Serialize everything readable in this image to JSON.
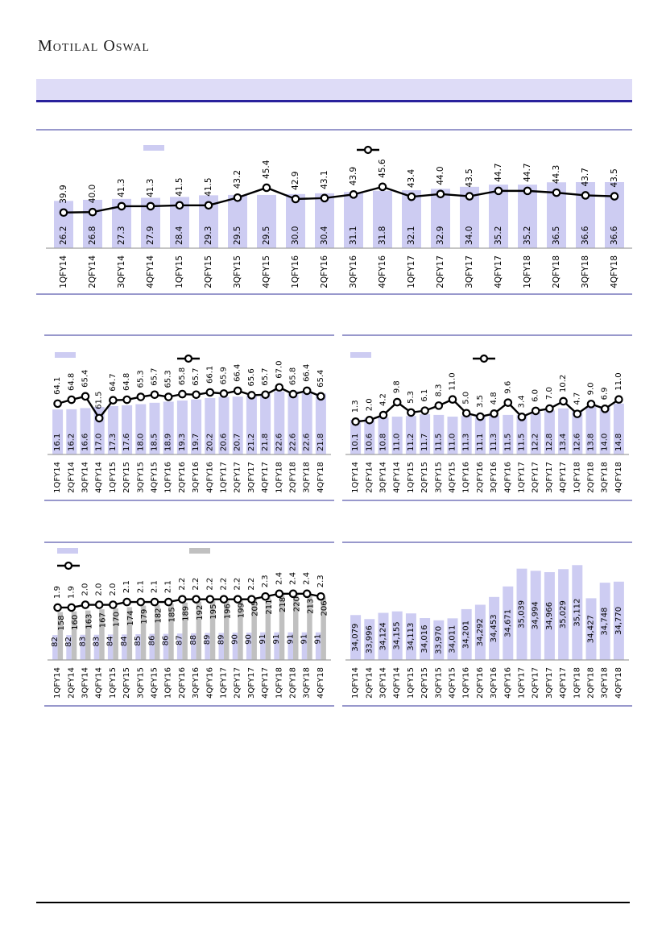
{
  "header": {
    "logo": "Motilal Oswal"
  },
  "colors": {
    "bar_fill": "#cdccf2",
    "bar_fill_secondary": "#c0c0c0",
    "banner_fill": "#dedcf7",
    "banner_border": "#29219c",
    "chart_border": "#9898cc",
    "axis_line": "#a0a0a0",
    "line_series": "#000000",
    "marker_fill": "#ffffff",
    "label_text": "#000000"
  },
  "chart_data": [
    {
      "id": "top-combo-chart",
      "type": "bar",
      "legend": [
        "bar-series-swatch",
        "line-series-marker"
      ],
      "grid": false,
      "categories": [
        "1QFY14",
        "2QFY14",
        "3QFY14",
        "4QFY14",
        "1QFY15",
        "2QFY15",
        "3QFY15",
        "4QFY15",
        "1QFY16",
        "2QFY16",
        "3QFY16",
        "4QFY16",
        "1QFY17",
        "2QFY17",
        "3QFY17",
        "4QFY17",
        "1QFY18",
        "2QFY18",
        "3QFY18",
        "4QFY18"
      ],
      "bar_axis": [
        0,
        50
      ],
      "line_axis": [
        32,
        52
      ],
      "series": [
        {
          "name": "bar-series",
          "type": "bar",
          "label_format": "1dp",
          "values": [
            26.2,
            26.8,
            27.3,
            27.9,
            28.4,
            29.3,
            29.5,
            29.5,
            30.0,
            30.4,
            31.1,
            31.8,
            32.1,
            32.9,
            34.0,
            35.2,
            35.2,
            36.5,
            36.6,
            36.6
          ]
        },
        {
          "name": "line-series",
          "type": "line",
          "label_format": "1dp",
          "values": [
            39.9,
            40.0,
            41.3,
            41.3,
            41.5,
            41.5,
            43.2,
            45.4,
            42.9,
            43.1,
            43.9,
            45.6,
            43.4,
            44.0,
            43.5,
            44.7,
            44.7,
            44.3,
            43.7,
            43.5
          ]
        }
      ]
    },
    {
      "id": "mid-left-combo-chart",
      "type": "bar",
      "legend": [
        "bar-series-swatch",
        "line-series-marker"
      ],
      "grid": false,
      "categories": [
        "1QFY14",
        "2QFY14",
        "3QFY14",
        "4QFY14",
        "1QFY15",
        "2QFY15",
        "3QFY15",
        "4QFY15",
        "1QFY16",
        "2QFY16",
        "3QFY16",
        "4QFY16",
        "1QFY17",
        "2QFY17",
        "3QFY17",
        "4QFY17",
        "1QFY18",
        "2QFY18",
        "3QFY18",
        "4QFY18"
      ],
      "bar_axis": [
        0,
        32
      ],
      "line_axis": [
        55,
        71
      ],
      "series": [
        {
          "name": "bar-series",
          "type": "bar",
          "label_format": "1dp",
          "values": [
            16.1,
            16.2,
            16.6,
            17.0,
            17.3,
            17.6,
            18.0,
            18.5,
            18.9,
            19.3,
            19.7,
            20.2,
            20.6,
            20.7,
            21.2,
            21.8,
            22.6,
            22.6,
            22.6,
            21.8
          ]
        },
        {
          "name": "line-series",
          "type": "line",
          "label_format": "1dp",
          "values": [
            64.1,
            64.8,
            65.4,
            61.5,
            64.7,
            64.8,
            65.3,
            65.7,
            65.3,
            65.8,
            65.7,
            66.1,
            65.9,
            66.4,
            65.6,
            65.7,
            67.0,
            65.8,
            66.4,
            65.4
          ]
        }
      ]
    },
    {
      "id": "mid-right-combo-chart",
      "type": "bar",
      "legend": [
        "bar-series-swatch",
        "line-series-marker"
      ],
      "grid": false,
      "categories": [
        "1QFY14",
        "2QFY14",
        "3QFY14",
        "4QFY14",
        "1QFY15",
        "2QFY15",
        "3QFY15",
        "4QFY15",
        "1QFY16",
        "2QFY16",
        "3QFY16",
        "4QFY16",
        "1QFY17",
        "2QFY17",
        "3QFY17",
        "4QFY17",
        "1QFY18",
        "2QFY18",
        "3QFY18",
        "4QFY18"
      ],
      "bar_axis": [
        0,
        26
      ],
      "line_axis": [
        -13,
        26
      ],
      "series": [
        {
          "name": "bar-series",
          "type": "bar",
          "label_format": "1dp",
          "values": [
            10.1,
            10.6,
            10.8,
            11.0,
            11.2,
            11.7,
            11.5,
            11.0,
            11.3,
            11.1,
            11.3,
            11.5,
            11.5,
            12.2,
            12.8,
            13.4,
            12.6,
            13.8,
            14.0,
            14.8
          ]
        },
        {
          "name": "line-series",
          "type": "line",
          "label_format": "1dp",
          "values": [
            1.3,
            2.0,
            4.2,
            9.8,
            5.3,
            6.1,
            8.3,
            11.0,
            5.0,
            3.5,
            4.8,
            9.6,
            3.4,
            6.0,
            7.0,
            10.2,
            4.7,
            9.0,
            6.9,
            11.0
          ]
        }
      ]
    },
    {
      "id": "bottom-left-combo-chart",
      "type": "bar",
      "legend": [
        "bar-series-swatch",
        "secondary-bar-series-swatch",
        "line-series-marker"
      ],
      "grid": false,
      "categories": [
        "1QFY14",
        "2QFY14",
        "3QFY14",
        "4QFY14",
        "1QFY15",
        "2QFY15",
        "3QFY15",
        "4QFY15",
        "1QFY16",
        "2QFY16",
        "3QFY16",
        "4QFY16",
        "1QFY17",
        "2QFY17",
        "3QFY17",
        "4QFY17",
        "1QFY18",
        "2QFY18",
        "3QFY18",
        "4QFY18"
      ],
      "bar_axis": [
        0,
        300
      ],
      "line_axis": [
        0,
        3.3
      ],
      "series": [
        {
          "name": "bar-series",
          "type": "bar",
          "label_format": "int",
          "values": [
            82,
            82,
            83,
            83,
            84,
            84,
            85,
            86,
            86,
            87,
            88,
            89,
            89,
            90,
            90,
            91,
            91,
            91,
            91,
            91
          ]
        },
        {
          "name": "secondary-bar-series",
          "type": "bar",
          "label_format": "int",
          "values": [
            158,
            160,
            163,
            167,
            170,
            174,
            179,
            182,
            185,
            189,
            192,
            195,
            196,
            199,
            205,
            211,
            218,
            220,
            213,
            206
          ]
        },
        {
          "name": "line-series",
          "type": "line",
          "label_format": "1dp",
          "values": [
            1.9,
            1.9,
            2.0,
            2.0,
            2.0,
            2.1,
            2.1,
            2.1,
            2.1,
            2.2,
            2.2,
            2.2,
            2.2,
            2.2,
            2.2,
            2.3,
            2.4,
            2.4,
            2.4,
            2.3
          ]
        }
      ]
    },
    {
      "id": "bottom-right-bar-chart",
      "type": "bar",
      "legend": [],
      "grid": false,
      "categories": [
        "1QFY14",
        "2QFY14",
        "3QFY14",
        "4QFY14",
        "1QFY15",
        "2QFY15",
        "3QFY15",
        "4QFY15",
        "1QFY16",
        "2QFY16",
        "3QFY16",
        "4QFY16",
        "1QFY17",
        "2QFY17",
        "3QFY17",
        "4QFY17",
        "1QFY18",
        "2QFY18",
        "3QFY18",
        "4QFY18"
      ],
      "bar_axis": [
        33150,
        35300
      ],
      "series": [
        {
          "name": "bar-series",
          "type": "bar",
          "label_format": "thousands",
          "values": [
            34079,
            33996,
            34124,
            34155,
            34113,
            34016,
            33970,
            34011,
            34201,
            34292,
            34453,
            34671,
            35039,
            34994,
            34966,
            35029,
            35112,
            34427,
            34748,
            34770
          ]
        }
      ]
    }
  ]
}
